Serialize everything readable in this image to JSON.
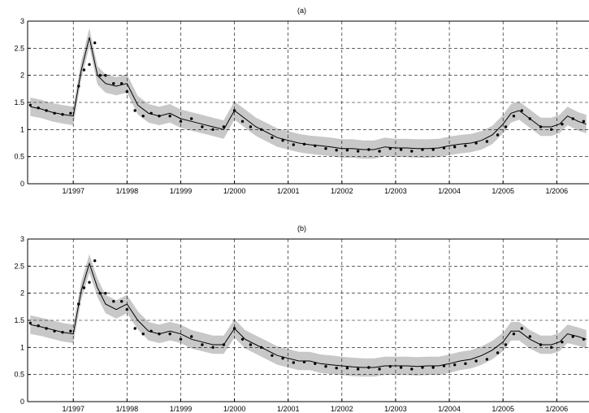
{
  "chart_data": [
    {
      "type": "line",
      "title": "(a)",
      "xlabel": "",
      "ylabel": "",
      "xlim": [
        1996.15,
        2006.6
      ],
      "ylim": [
        0,
        3
      ],
      "grid": true,
      "x_ticks": [
        {
          "label": "1/1997",
          "value": 1997.0
        },
        {
          "label": "1/1998",
          "value": 1998.0
        },
        {
          "label": "1/1999",
          "value": 1999.0
        },
        {
          "label": "1/2000",
          "value": 2000.0
        },
        {
          "label": "1/2001",
          "value": 2001.0
        },
        {
          "label": "1/2002",
          "value": 2002.0
        },
        {
          "label": "1/2003",
          "value": 2003.0
        },
        {
          "label": "1/2004",
          "value": 2004.0
        },
        {
          "label": "1/2005",
          "value": 2005.0
        },
        {
          "label": "1/2006",
          "value": 2006.0
        }
      ],
      "y_ticks": [
        {
          "label": "0",
          "value": 0
        },
        {
          "label": "0.5",
          "value": 0.5
        },
        {
          "label": "1",
          "value": 1
        },
        {
          "label": "1.5",
          "value": 1.5
        },
        {
          "label": "2",
          "value": 2
        },
        {
          "label": "2.5",
          "value": 2.5
        },
        {
          "label": "3",
          "value": 3
        }
      ],
      "band_halfwidth": 0.17,
      "colors": {
        "band": "#c8c8c8",
        "line": "#000000",
        "points": "#000000",
        "grid": "#000000"
      },
      "line": {
        "x": [
          1996.2,
          1996.4,
          1996.6,
          1996.8,
          1997.0,
          1997.15,
          1997.3,
          1997.45,
          1997.6,
          1997.8,
          1998.0,
          1998.2,
          1998.4,
          1998.6,
          1998.8,
          1999.0,
          1999.2,
          1999.4,
          1999.6,
          1999.8,
          2000.0,
          2000.2,
          2000.4,
          2000.6,
          2000.8,
          2001.0,
          2001.2,
          2001.4,
          2001.6,
          2001.8,
          2002.0,
          2002.2,
          2002.4,
          2002.6,
          2002.8,
          2003.0,
          2003.2,
          2003.4,
          2003.6,
          2003.8,
          2004.0,
          2004.2,
          2004.4,
          2004.6,
          2004.8,
          2005.0,
          2005.15,
          2005.3,
          2005.5,
          2005.7,
          2005.9,
          2006.05,
          2006.2,
          2006.4,
          2006.55
        ],
        "y": [
          1.42,
          1.38,
          1.32,
          1.28,
          1.25,
          2.1,
          2.7,
          2.0,
          1.85,
          1.8,
          1.85,
          1.45,
          1.3,
          1.25,
          1.3,
          1.2,
          1.15,
          1.1,
          1.05,
          1.0,
          1.35,
          1.2,
          1.05,
          0.95,
          0.85,
          0.8,
          0.75,
          0.72,
          0.7,
          0.68,
          0.65,
          0.65,
          0.63,
          0.63,
          0.68,
          0.66,
          0.66,
          0.65,
          0.65,
          0.66,
          0.7,
          0.73,
          0.75,
          0.8,
          0.9,
          1.1,
          1.3,
          1.35,
          1.2,
          1.05,
          1.05,
          1.1,
          1.25,
          1.15,
          1.1
        ]
      },
      "points": {
        "x": [
          1996.2,
          1996.35,
          1996.5,
          1996.65,
          1996.8,
          1996.95,
          1997.1,
          1997.2,
          1997.3,
          1997.4,
          1997.5,
          1997.6,
          1997.75,
          1997.9,
          1998.0,
          1998.15,
          1998.3,
          1998.45,
          1998.6,
          1998.8,
          1999.0,
          1999.2,
          1999.4,
          1999.6,
          1999.8,
          2000.0,
          2000.15,
          2000.3,
          2000.5,
          2000.7,
          2000.9,
          2001.1,
          2001.3,
          2001.5,
          2001.7,
          2001.9,
          2002.1,
          2002.3,
          2002.5,
          2002.7,
          2002.9,
          2003.1,
          2003.3,
          2003.5,
          2003.7,
          2003.9,
          2004.1,
          2004.3,
          2004.5,
          2004.7,
          2004.9,
          2005.05,
          2005.2,
          2005.35,
          2005.5,
          2005.7,
          2005.9,
          2006.1,
          2006.3,
          2006.5
        ],
        "y": [
          1.45,
          1.4,
          1.35,
          1.3,
          1.28,
          1.3,
          1.8,
          2.1,
          2.2,
          2.6,
          2.0,
          2.0,
          1.85,
          1.85,
          1.7,
          1.35,
          1.25,
          1.3,
          1.25,
          1.25,
          1.15,
          1.2,
          1.05,
          1.0,
          1.05,
          1.35,
          1.15,
          1.05,
          1.0,
          0.85,
          0.8,
          0.72,
          0.73,
          0.7,
          0.65,
          0.62,
          0.62,
          0.6,
          0.63,
          0.6,
          0.65,
          0.63,
          0.6,
          0.63,
          0.63,
          0.66,
          0.68,
          0.7,
          0.75,
          0.78,
          0.9,
          1.05,
          1.25,
          1.35,
          1.2,
          1.05,
          1.0,
          1.1,
          1.2,
          1.15
        ]
      }
    },
    {
      "type": "line",
      "title": "(b)",
      "xlabel": "",
      "ylabel": "",
      "xlim": [
        1996.15,
        2006.6
      ],
      "ylim": [
        0,
        3
      ],
      "grid": true,
      "x_ticks": [
        {
          "label": "1/1997",
          "value": 1997.0
        },
        {
          "label": "1/1998",
          "value": 1998.0
        },
        {
          "label": "1/1999",
          "value": 1999.0
        },
        {
          "label": "1/2000",
          "value": 2000.0
        },
        {
          "label": "1/2001",
          "value": 2001.0
        },
        {
          "label": "1/2002",
          "value": 2002.0
        },
        {
          "label": "1/2003",
          "value": 2003.0
        },
        {
          "label": "1/2004",
          "value": 2004.0
        },
        {
          "label": "1/2005",
          "value": 2005.0
        },
        {
          "label": "1/2006",
          "value": 2006.0
        }
      ],
      "y_ticks": [
        {
          "label": "0",
          "value": 0
        },
        {
          "label": "0.5",
          "value": 0.5
        },
        {
          "label": "1",
          "value": 1
        },
        {
          "label": "1.5",
          "value": 1.5
        },
        {
          "label": "2",
          "value": 2
        },
        {
          "label": "2.5",
          "value": 2.5
        },
        {
          "label": "3",
          "value": 3
        }
      ],
      "band_halfwidth": 0.17,
      "colors": {
        "band": "#c8c8c8",
        "line": "#000000",
        "points": "#000000",
        "grid": "#000000"
      },
      "line": {
        "x": [
          1996.2,
          1996.4,
          1996.6,
          1996.8,
          1997.0,
          1997.15,
          1997.3,
          1997.45,
          1997.6,
          1997.8,
          1998.0,
          1998.2,
          1998.4,
          1998.6,
          1998.8,
          1999.0,
          1999.2,
          1999.4,
          1999.6,
          1999.8,
          2000.0,
          2000.2,
          2000.4,
          2000.6,
          2000.8,
          2001.0,
          2001.2,
          2001.4,
          2001.6,
          2001.8,
          2002.0,
          2002.2,
          2002.4,
          2002.6,
          2002.8,
          2003.0,
          2003.2,
          2003.4,
          2003.6,
          2003.8,
          2004.0,
          2004.2,
          2004.4,
          2004.6,
          2004.8,
          2005.0,
          2005.15,
          2005.3,
          2005.5,
          2005.7,
          2005.9,
          2006.05,
          2006.2,
          2006.4,
          2006.55
        ],
        "y": [
          1.42,
          1.38,
          1.33,
          1.28,
          1.25,
          2.05,
          2.55,
          2.1,
          1.8,
          1.7,
          1.8,
          1.5,
          1.3,
          1.25,
          1.3,
          1.25,
          1.15,
          1.1,
          1.05,
          1.05,
          1.35,
          1.15,
          1.05,
          0.95,
          0.85,
          0.8,
          0.75,
          0.75,
          0.7,
          0.68,
          0.66,
          0.64,
          0.63,
          0.63,
          0.66,
          0.66,
          0.66,
          0.65,
          0.66,
          0.66,
          0.7,
          0.75,
          0.78,
          0.85,
          0.95,
          1.1,
          1.3,
          1.3,
          1.15,
          1.05,
          1.05,
          1.1,
          1.25,
          1.2,
          1.15
        ]
      },
      "points": {
        "x": [
          1996.2,
          1996.35,
          1996.5,
          1996.65,
          1996.8,
          1996.95,
          1997.1,
          1997.2,
          1997.3,
          1997.4,
          1997.5,
          1997.6,
          1997.75,
          1997.9,
          1998.0,
          1998.15,
          1998.3,
          1998.45,
          1998.6,
          1998.8,
          1999.0,
          1999.2,
          1999.4,
          1999.6,
          1999.8,
          2000.0,
          2000.15,
          2000.3,
          2000.5,
          2000.7,
          2000.9,
          2001.1,
          2001.3,
          2001.5,
          2001.7,
          2001.9,
          2002.1,
          2002.3,
          2002.5,
          2002.7,
          2002.9,
          2003.1,
          2003.3,
          2003.5,
          2003.7,
          2003.9,
          2004.1,
          2004.3,
          2004.5,
          2004.7,
          2004.9,
          2005.05,
          2005.2,
          2005.35,
          2005.5,
          2005.7,
          2005.9,
          2006.1,
          2006.3,
          2006.5
        ],
        "y": [
          1.45,
          1.4,
          1.35,
          1.3,
          1.28,
          1.3,
          1.8,
          2.1,
          2.2,
          2.6,
          2.0,
          2.0,
          1.85,
          1.85,
          1.7,
          1.35,
          1.25,
          1.3,
          1.25,
          1.25,
          1.15,
          1.2,
          1.05,
          1.0,
          1.05,
          1.35,
          1.15,
          1.05,
          1.0,
          0.85,
          0.8,
          0.72,
          0.73,
          0.7,
          0.65,
          0.62,
          0.62,
          0.6,
          0.63,
          0.6,
          0.65,
          0.63,
          0.6,
          0.63,
          0.63,
          0.66,
          0.68,
          0.7,
          0.75,
          0.78,
          0.9,
          1.05,
          1.25,
          1.35,
          1.2,
          1.05,
          1.0,
          1.1,
          1.2,
          1.15
        ]
      }
    }
  ]
}
